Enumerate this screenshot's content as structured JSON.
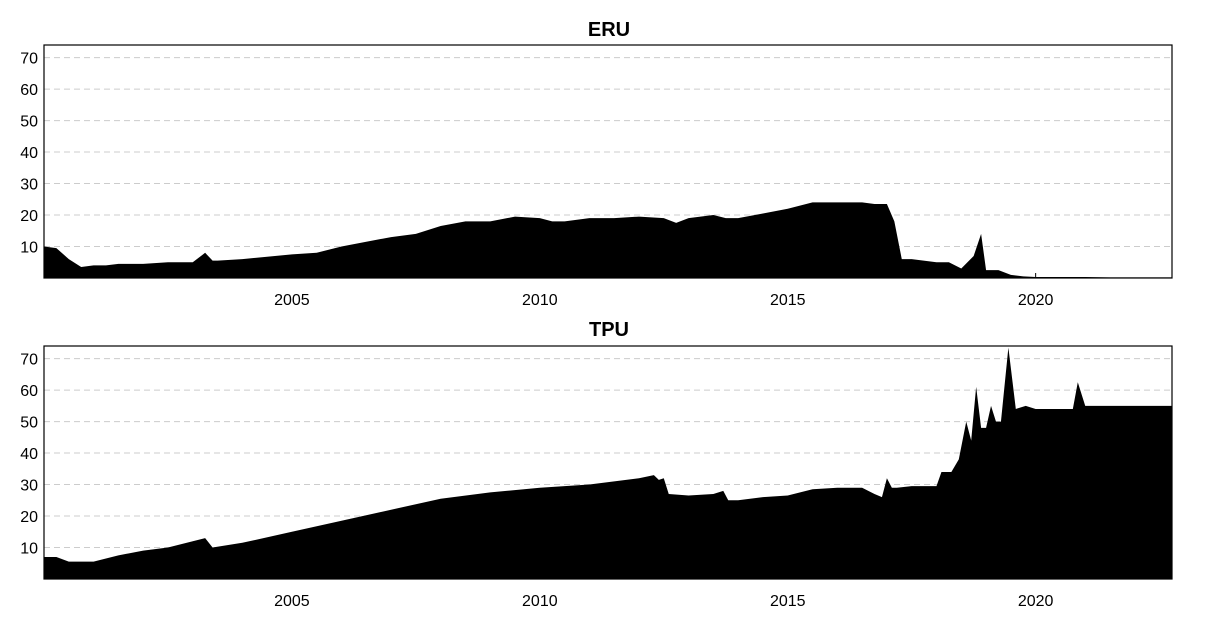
{
  "chart_data": [
    {
      "type": "area",
      "title": "ERU",
      "xlabel": "",
      "ylabel": "",
      "xlim": [
        2000.0,
        2022.75
      ],
      "ylim": [
        0,
        74
      ],
      "grid": "horizontal-dashed",
      "fill_color": "#000000",
      "xticks": [
        "2005",
        "2010",
        "2015",
        "2020"
      ],
      "yticks": [
        "10",
        "20",
        "30",
        "40",
        "50",
        "60",
        "70"
      ],
      "x": [
        2000.0,
        2000.25,
        2000.5,
        2000.75,
        2001.0,
        2001.25,
        2001.5,
        2002.0,
        2002.5,
        2003.0,
        2003.25,
        2003.4,
        2003.5,
        2004.0,
        2005.0,
        2005.5,
        2006.0,
        2006.5,
        2007.0,
        2007.5,
        2008.0,
        2008.5,
        2009.0,
        2009.5,
        2010.0,
        2010.25,
        2010.5,
        2011.0,
        2011.5,
        2012.0,
        2012.5,
        2012.75,
        2013.0,
        2013.5,
        2013.75,
        2014.0,
        2014.5,
        2015.0,
        2015.5,
        2016.0,
        2016.5,
        2016.75,
        2016.9,
        2017.0,
        2017.15,
        2017.3,
        2017.5,
        2018.0,
        2018.25,
        2018.5,
        2018.75,
        2018.9,
        2019.0,
        2019.25,
        2019.5,
        2019.75,
        2020.0,
        2020.5,
        2021.0,
        2021.5,
        2022.0,
        2022.75
      ],
      "values": [
        10,
        9.5,
        6,
        3.5,
        4,
        4,
        4.5,
        4.5,
        5,
        5,
        8,
        5.5,
        5.5,
        6,
        7.5,
        8,
        10,
        11.5,
        13,
        14,
        16.5,
        18,
        18,
        19.5,
        19,
        18,
        18,
        19,
        19,
        19.5,
        19,
        17.5,
        19,
        20,
        19,
        19,
        20.5,
        22,
        24,
        24,
        24,
        23.5,
        23.5,
        23.5,
        18,
        6,
        6,
        5,
        5,
        3,
        7,
        14,
        2.5,
        2.5,
        1,
        0.5,
        0.3,
        0.3,
        0.3,
        0.2,
        0.2,
        0.2
      ]
    },
    {
      "type": "area",
      "title": "TPU",
      "xlabel": "",
      "ylabel": "",
      "xlim": [
        2000.0,
        2022.75
      ],
      "ylim": [
        0,
        74
      ],
      "grid": "horizontal-dashed",
      "fill_color": "#000000",
      "xticks": [
        "2005",
        "2010",
        "2015",
        "2020"
      ],
      "yticks": [
        "10",
        "20",
        "30",
        "40",
        "50",
        "60",
        "70"
      ],
      "x": [
        2000.0,
        2000.25,
        2000.5,
        2000.75,
        2001.0,
        2001.5,
        2002.0,
        2002.5,
        2003.0,
        2003.25,
        2003.4,
        2004.0,
        2005.0,
        2006.0,
        2007.0,
        2008.0,
        2009.0,
        2010.0,
        2011.0,
        2012.0,
        2012.3,
        2012.4,
        2012.5,
        2012.6,
        2013.0,
        2013.5,
        2013.7,
        2013.8,
        2014.0,
        2014.5,
        2015.0,
        2015.5,
        2016.0,
        2016.5,
        2016.75,
        2016.9,
        2017.0,
        2017.1,
        2017.2,
        2017.5,
        2018.0,
        2018.1,
        2018.3,
        2018.45,
        2018.6,
        2018.7,
        2018.8,
        2018.9,
        2019.0,
        2019.1,
        2019.2,
        2019.3,
        2019.45,
        2019.6,
        2019.8,
        2020.0,
        2020.5,
        2020.75,
        2020.85,
        2021.0,
        2021.5,
        2022.0,
        2022.75
      ],
      "values": [
        7,
        7,
        5.5,
        5.5,
        5.5,
        7.5,
        9,
        10,
        12,
        13,
        10,
        11.5,
        15,
        18.5,
        22,
        25.5,
        27.5,
        29,
        30,
        32,
        33,
        31.5,
        32,
        27,
        26.5,
        27,
        28,
        25,
        25,
        26,
        26.5,
        28.5,
        29,
        29,
        27,
        26,
        32,
        29,
        29,
        29.5,
        29.5,
        34,
        34,
        38,
        50,
        44,
        61,
        48,
        48,
        55,
        50,
        50,
        73.5,
        54,
        55,
        54,
        54,
        54,
        62.5,
        55,
        55,
        55,
        55
      ]
    }
  ]
}
